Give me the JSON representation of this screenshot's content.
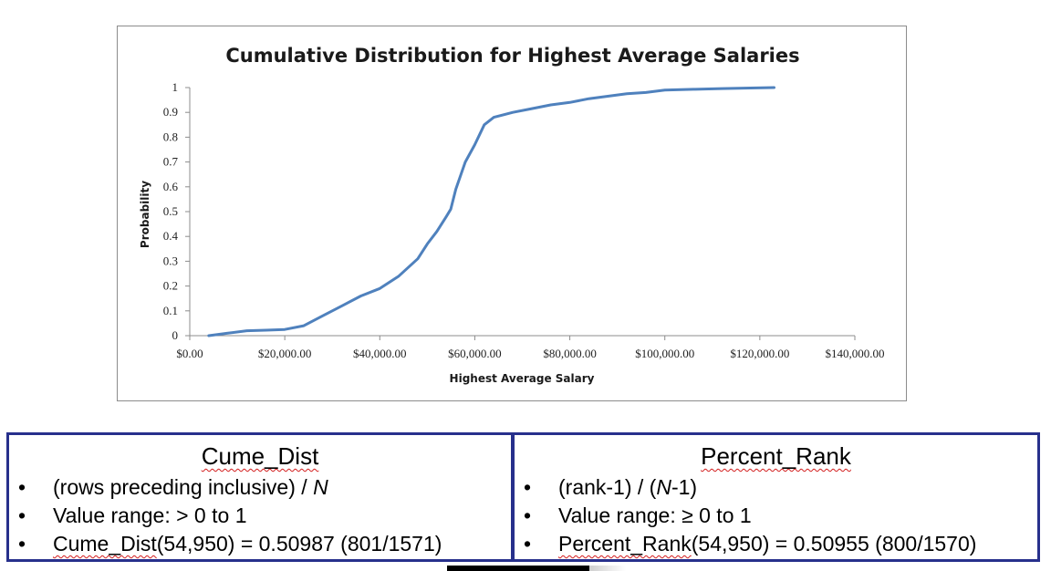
{
  "chart_data": {
    "type": "line",
    "title": "Cumulative Distribution for Highest Average Salaries",
    "xlabel": "Highest Average Salary",
    "ylabel": "Probability",
    "xlim": [
      0,
      140000
    ],
    "ylim": [
      0,
      1
    ],
    "x_ticks": [
      "$0.00",
      "$20,000.00",
      "$40,000.00",
      "$60,000.00",
      "$80,000.00",
      "$100,000.00",
      "$120,000.00",
      "$140,000.00"
    ],
    "y_ticks": [
      "0",
      "0.1",
      "0.2",
      "0.3",
      "0.4",
      "0.5",
      "0.6",
      "0.7",
      "0.8",
      "0.9",
      "1"
    ],
    "grid": false,
    "legend": "none",
    "line_color": "#4f81bd",
    "series": [
      {
        "x": [
          4000,
          8000,
          12000,
          16000,
          20000,
          24000,
          28000,
          32000,
          36000,
          40000,
          44000,
          48000,
          50000,
          52000,
          54000,
          54950,
          56000,
          58000,
          60000,
          62000,
          64000,
          68000,
          72000,
          76000,
          80000,
          84000,
          88000,
          92000,
          96000,
          100000,
          106000,
          112000,
          118000,
          123000
        ],
        "y": [
          0.0,
          0.01,
          0.02,
          0.022,
          0.025,
          0.04,
          0.08,
          0.12,
          0.16,
          0.19,
          0.24,
          0.31,
          0.37,
          0.42,
          0.48,
          0.51,
          0.59,
          0.7,
          0.77,
          0.85,
          0.88,
          0.9,
          0.915,
          0.93,
          0.94,
          0.955,
          0.965,
          0.975,
          0.98,
          0.99,
          0.993,
          0.996,
          0.998,
          1.0
        ]
      }
    ]
  },
  "cume_box": {
    "title": "Cume_Dist",
    "bullets": [
      {
        "text_pre": "(rows preceding inclusive) / ",
        "text_em": "N"
      },
      {
        "text": "Value range: > 0 to 1"
      },
      {
        "squiggle": "Cume_Dist",
        "text": "(54,950) = 0.50987 (801/1571)"
      }
    ]
  },
  "rank_box": {
    "title": "Percent_Rank",
    "bullets": [
      {
        "p1": "(rank-1) / (",
        "em": "N",
        "p2": "-1)"
      },
      {
        "text": "Value range: ≥ 0 to 1"
      },
      {
        "squiggle": "Percent_Rank",
        "text": "(54,950) = 0.50955 (800/1570)"
      }
    ]
  },
  "bullet_char": "•"
}
